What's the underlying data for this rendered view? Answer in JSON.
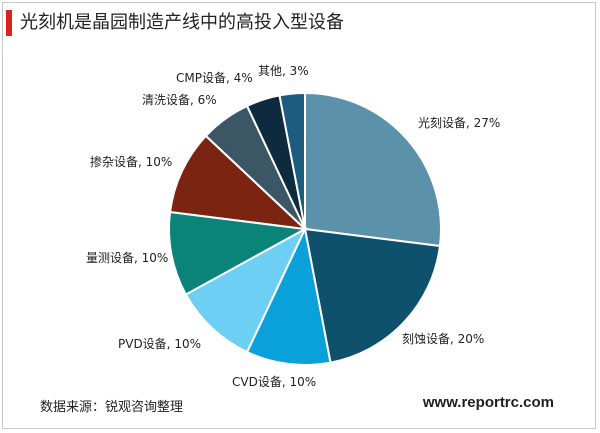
{
  "title": "光刻机是晶园制造产线中的高投入型设备",
  "source": "数据来源：锐观咨询整理",
  "website": "www.reportrc.com",
  "chart_data": {
    "type": "pie",
    "title": "光刻机是晶园制造产线中的高投入型设备",
    "slices": [
      {
        "label": "光刻设备, 27%",
        "name": "光刻设备",
        "value": 27,
        "color": "#5b92a9"
      },
      {
        "label": "刻蚀设备, 20%",
        "name": "刻蚀设备",
        "value": 20,
        "color": "#0f516d"
      },
      {
        "label": "CVD设备, 10%",
        "name": "CVD设备",
        "value": 10,
        "color": "#0aa0da"
      },
      {
        "label": "PVD设备, 10%",
        "name": "PVD设备",
        "value": 10,
        "color": "#6ccff3"
      },
      {
        "label": "量测设备, 10%",
        "name": "量测设备",
        "value": 10,
        "color": "#0a8479"
      },
      {
        "label": "掺杂设备, 10%",
        "name": "掺杂设备",
        "value": 10,
        "color": "#7b2412"
      },
      {
        "label": "清洗设备, 6%",
        "name": "清洗设备",
        "value": 6,
        "color": "#3b5766"
      },
      {
        "label": "CMP设备, 4%",
        "name": "CMP设备",
        "value": 4,
        "color": "#0e2a3e"
      },
      {
        "label": "其他, 3%",
        "name": "其他",
        "value": 3,
        "color": "#1c5c7f"
      }
    ]
  }
}
